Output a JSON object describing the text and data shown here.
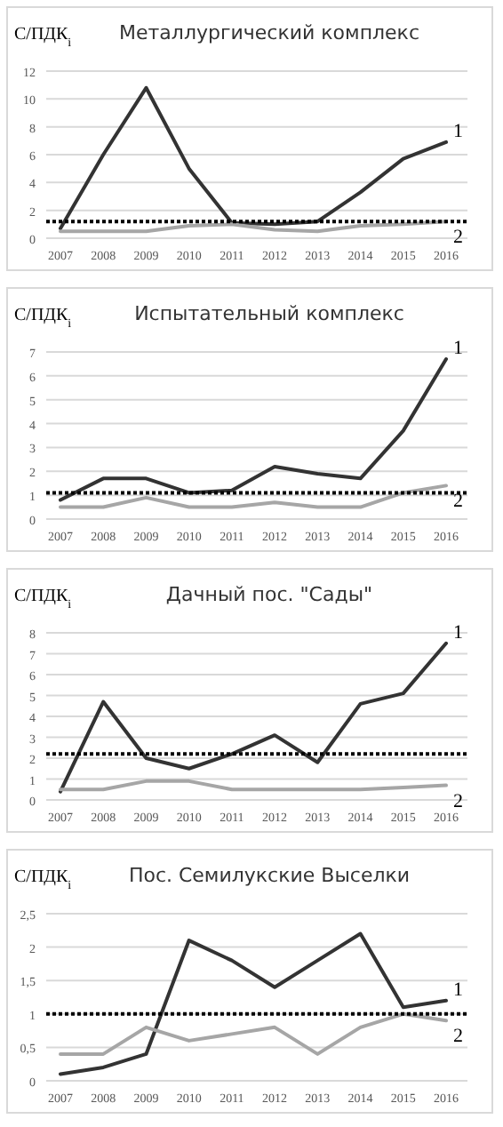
{
  "chart_data": [
    {
      "type": "line",
      "title": "Металлургический комплекс",
      "ylabel": "С/ПДК$_{i}$",
      "categories": [
        "2007",
        "2008",
        "2009",
        "2010",
        "2011",
        "2012",
        "2013",
        "2014",
        "2015",
        "2016"
      ],
      "ylim": [
        0,
        12
      ],
      "yticks": [
        0,
        2,
        4,
        6,
        8,
        10,
        12
      ],
      "grid": "y",
      "marker": "none",
      "line_style": "solid",
      "series": [
        {
          "name": "1",
          "color": "#333333",
          "values": [
            0.7,
            6.0,
            10.8,
            5.0,
            1.1,
            1.0,
            1.2,
            3.3,
            5.7,
            6.9
          ]
        },
        {
          "name": "2",
          "color": "#a6a6a6",
          "values": [
            0.5,
            0.5,
            0.5,
            0.9,
            1.0,
            0.6,
            0.5,
            0.9,
            1.0,
            1.2
          ]
        }
      ],
      "ref_lines": [
        {
          "axis": "y",
          "value": 1.2,
          "color": "#000000",
          "line_style": "dotted"
        }
      ]
    },
    {
      "type": "line",
      "title": "Испытательный комплекс",
      "ylabel": "С/ПДК$_{i}$",
      "categories": [
        "2007",
        "2008",
        "2009",
        "2010",
        "2011",
        "2012",
        "2013",
        "2014",
        "2015",
        "2016"
      ],
      "ylim": [
        0,
        7
      ],
      "yticks": [
        0,
        1,
        2,
        3,
        4,
        5,
        6,
        7
      ],
      "grid": "y",
      "marker": "none",
      "line_style": "solid",
      "series": [
        {
          "name": "1",
          "color": "#333333",
          "values": [
            0.8,
            1.7,
            1.7,
            1.1,
            1.2,
            2.2,
            1.9,
            1.7,
            3.7,
            6.7
          ]
        },
        {
          "name": "2",
          "color": "#a6a6a6",
          "values": [
            0.5,
            0.5,
            0.9,
            0.5,
            0.5,
            0.7,
            0.5,
            0.5,
            1.1,
            1.4
          ]
        }
      ],
      "ref_lines": [
        {
          "axis": "y",
          "value": 1.1,
          "color": "#000000",
          "line_style": "dotted"
        }
      ]
    },
    {
      "type": "line",
      "title": "Дачный пос. \"Сады\"",
      "ylabel": "С/ПДК$_{i}$",
      "categories": [
        "2007",
        "2008",
        "2009",
        "2010",
        "2011",
        "2012",
        "2013",
        "2014",
        "2015",
        "2016"
      ],
      "ylim": [
        0,
        8
      ],
      "yticks": [
        0,
        1,
        2,
        3,
        4,
        5,
        6,
        7,
        8
      ],
      "grid": "y",
      "marker": "none",
      "line_style": "solid",
      "series": [
        {
          "name": "1",
          "color": "#333333",
          "values": [
            0.4,
            4.7,
            2.0,
            1.5,
            2.2,
            3.1,
            1.8,
            4.6,
            5.1,
            7.5
          ]
        },
        {
          "name": "2",
          "color": "#a6a6a6",
          "values": [
            0.5,
            0.5,
            0.9,
            0.9,
            0.5,
            0.5,
            0.5,
            0.5,
            0.6,
            0.7
          ]
        }
      ],
      "ref_lines": [
        {
          "axis": "y",
          "value": 2.2,
          "color": "#000000",
          "line_style": "dotted"
        }
      ]
    },
    {
      "type": "line",
      "title": "Пос. Семилукские Выселки",
      "ylabel": "С/ПДК$_{i}$",
      "categories": [
        "2007",
        "2008",
        "2009",
        "2010",
        "2011",
        "2012",
        "2013",
        "2014",
        "2015",
        "2016"
      ],
      "ylim": [
        0,
        2.5
      ],
      "yticks": [
        0,
        {
          "value": 0.5,
          "label": "0,5"
        },
        1,
        {
          "value": 1.5,
          "label": "1,5"
        },
        2,
        {
          "value": 2.5,
          "label": "2,5"
        }
      ],
      "grid": "y",
      "marker": "none",
      "line_style": "solid",
      "series": [
        {
          "name": "1",
          "color": "#333333",
          "values": [
            0.1,
            0.2,
            0.4,
            2.1,
            1.8,
            1.4,
            1.8,
            2.2,
            1.1,
            1.2
          ]
        },
        {
          "name": "2",
          "color": "#a6a6a6",
          "values": [
            0.4,
            0.4,
            0.8,
            0.6,
            0.7,
            0.8,
            0.4,
            0.8,
            1.0,
            0.9
          ]
        }
      ],
      "ref_lines": [
        {
          "axis": "y",
          "value": 1,
          "color": "#000000",
          "line_style": "dotted"
        }
      ]
    }
  ]
}
